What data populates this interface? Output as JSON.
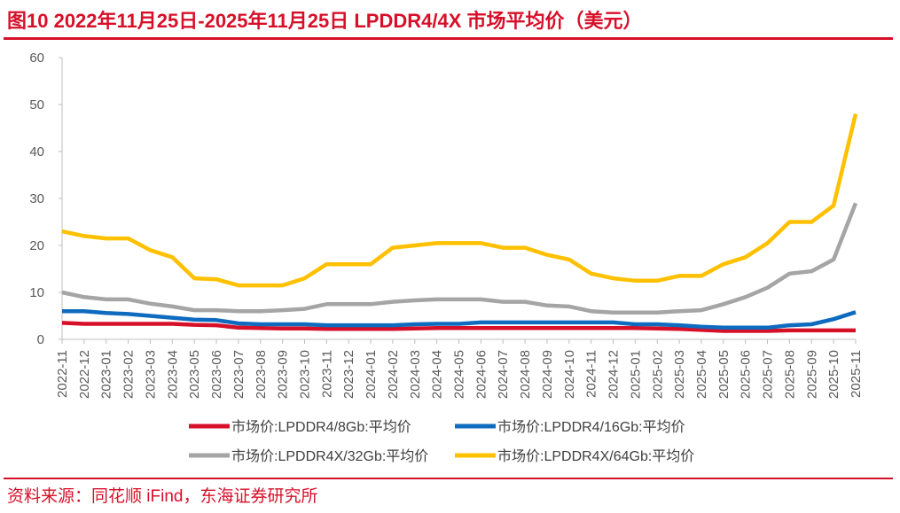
{
  "figure": {
    "title": "图10  2022年11月25日-2025年11月25日 LPDDR4/4X 市场平均价（美元）",
    "source": "资料来源：同花顺 iFind，东海证券研究所"
  },
  "chart_data": {
    "type": "line",
    "title": "2022年11月25日-2025年11月25日 LPDDR4/4X 市场平均价（美元）",
    "xlabel": "",
    "ylabel": "",
    "ylim": [
      0,
      60
    ],
    "yticks": [
      0,
      10,
      20,
      30,
      40,
      50,
      60
    ],
    "grid": false,
    "legend_position": "bottom",
    "x": [
      "2022-11",
      "2022-12",
      "2023-01",
      "2023-02",
      "2023-03",
      "2023-04",
      "2023-05",
      "2023-06",
      "2023-07",
      "2023-08",
      "2023-09",
      "2023-10",
      "2023-11",
      "2023-12",
      "2024-01",
      "2024-02",
      "2024-03",
      "2024-04",
      "2024-05",
      "2024-06",
      "2024-07",
      "2024-08",
      "2024-09",
      "2024-10",
      "2024-11",
      "2024-12",
      "2025-01",
      "2025-02",
      "2025-03",
      "2025-04",
      "2025-05",
      "2025-06",
      "2025-07",
      "2025-08",
      "2025-09",
      "2025-10",
      "2025-11"
    ],
    "series": [
      {
        "name": "市场价:LPDDR4/8Gb:平均价",
        "color": "#d7102a",
        "values": [
          3.5,
          3.3,
          3.3,
          3.3,
          3.3,
          3.3,
          3.1,
          3.0,
          2.5,
          2.4,
          2.3,
          2.3,
          2.2,
          2.2,
          2.2,
          2.2,
          2.3,
          2.4,
          2.4,
          2.4,
          2.4,
          2.4,
          2.4,
          2.4,
          2.4,
          2.4,
          2.4,
          2.3,
          2.2,
          2.0,
          1.8,
          1.8,
          1.8,
          1.9,
          1.9,
          1.9,
          1.9
        ]
      },
      {
        "name": "市场价:LPDDR4/16Gb:平均价",
        "color": "#0e6bbf",
        "values": [
          6.0,
          6.0,
          5.6,
          5.4,
          5.0,
          4.6,
          4.2,
          4.1,
          3.4,
          3.2,
          3.2,
          3.2,
          3.0,
          3.0,
          3.0,
          3.0,
          3.2,
          3.3,
          3.3,
          3.6,
          3.6,
          3.6,
          3.6,
          3.6,
          3.6,
          3.6,
          3.2,
          3.2,
          3.0,
          2.7,
          2.5,
          2.5,
          2.5,
          3.0,
          3.2,
          4.3,
          5.8
        ]
      },
      {
        "name": "市场价:LPDDR4X/32Gb:平均价",
        "color": "#a5a5a5",
        "values": [
          10.0,
          9.0,
          8.5,
          8.5,
          7.6,
          7.0,
          6.2,
          6.2,
          6.0,
          6.0,
          6.2,
          6.5,
          7.5,
          7.5,
          7.5,
          8.0,
          8.3,
          8.5,
          8.5,
          8.5,
          8.0,
          8.0,
          7.2,
          7.0,
          6.0,
          5.7,
          5.7,
          5.7,
          6.0,
          6.2,
          7.5,
          9.0,
          11.0,
          14.0,
          14.5,
          17.0,
          29.0
        ]
      },
      {
        "name": "市场价:LPDDR4X/64Gb:平均价",
        "color": "#ffc000",
        "values": [
          23.0,
          22.0,
          21.5,
          21.5,
          19.0,
          17.5,
          13.0,
          12.8,
          11.5,
          11.5,
          11.5,
          13.0,
          16.0,
          16.0,
          16.0,
          19.5,
          20.0,
          20.5,
          20.5,
          20.5,
          19.5,
          19.5,
          18.0,
          17.0,
          14.0,
          13.0,
          12.5,
          12.5,
          13.5,
          13.5,
          16.0,
          17.5,
          20.5,
          25.0,
          25.0,
          28.5,
          48.0
        ]
      }
    ]
  }
}
